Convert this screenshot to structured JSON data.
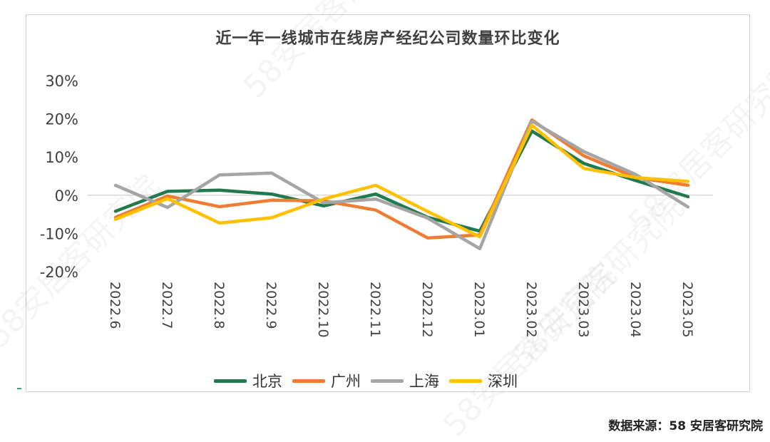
{
  "colors": {
    "beijing": "#217a4e",
    "guangzhou": "#ee7d31",
    "shanghai": "#a5a5a5",
    "shenzhen": "#ffc000",
    "gridline": "#d9d9d9"
  },
  "source_text": "数据来源：58 安居客研究院",
  "chart_data": {
    "type": "line",
    "title": "近一年一线城市在线房产经纪公司数量环比变化",
    "xlabel": "",
    "ylabel": "",
    "categories": [
      "2022.6",
      "2022.7",
      "2022.8",
      "2022.9",
      "2022.10",
      "2022.11",
      "2022.12",
      "2023.01",
      "2023.02",
      "2023.03",
      "2023.04",
      "2023.05"
    ],
    "y_ticks": [
      -20,
      -10,
      0,
      10,
      20,
      30
    ],
    "y_tick_labels": [
      "-20%",
      "-10%",
      "0%",
      "10%",
      "20%",
      "30%"
    ],
    "ylim": [
      -20,
      30
    ],
    "grid": "zero-line only",
    "legend_position": "bottom",
    "series": [
      {
        "name": "北京",
        "key": "beijing",
        "values": [
          -4.2,
          1.0,
          1.3,
          0.3,
          -2.8,
          0.3,
          -5.8,
          -9.4,
          16.8,
          8.3,
          3.8,
          -0.4
        ]
      },
      {
        "name": "广州",
        "key": "guangzhou",
        "values": [
          -5.8,
          -0.2,
          -3.0,
          -1.3,
          -1.5,
          -3.9,
          -11.2,
          -10.4,
          19.7,
          10.3,
          4.6,
          2.6
        ]
      },
      {
        "name": "上海",
        "key": "shanghai",
        "values": [
          2.6,
          -3.2,
          5.3,
          5.8,
          -2.0,
          -1.0,
          -6.0,
          -14.0,
          19.4,
          11.4,
          5.4,
          -3.1
        ]
      },
      {
        "name": "深圳",
        "key": "shenzhen",
        "values": [
          -6.3,
          -0.9,
          -7.3,
          -5.9,
          -1.0,
          2.6,
          -4.3,
          -10.9,
          18.3,
          7.0,
          4.6,
          3.6
        ]
      }
    ]
  },
  "watermarks": [
    "58安居客研究院",
    "58安居客研究院",
    "58安居客研究院",
    "58安居客研究院",
    "58安居客研究院"
  ]
}
